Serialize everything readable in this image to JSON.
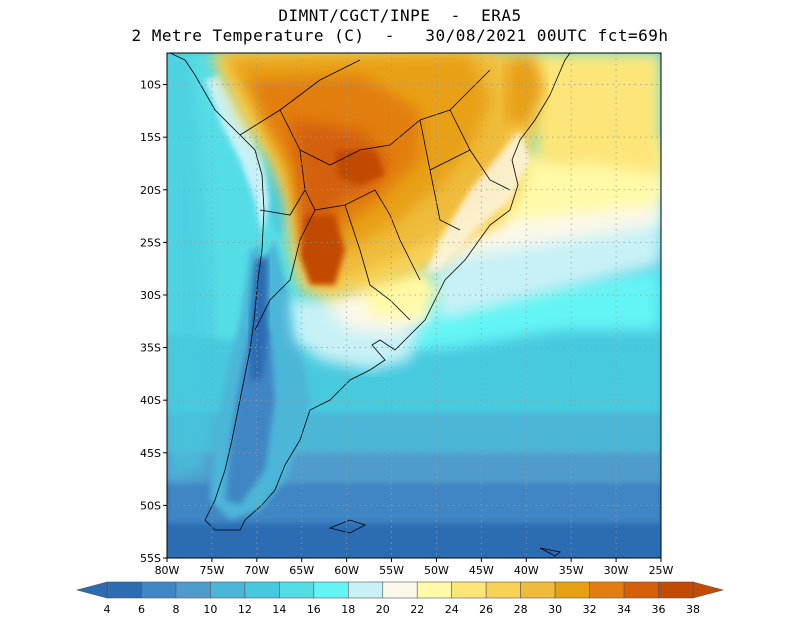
{
  "title": {
    "line1": "DIMNT/CGCT/INPE  -  ERA5",
    "line2": "2 Metre Temperature (C)  -   30/08/2021 00UTC fct=69h"
  },
  "map": {
    "lon_range": [
      -80,
      -25
    ],
    "lat_range": [
      -55,
      -7
    ],
    "lon_ticks": [
      -80,
      -75,
      -70,
      -65,
      -60,
      -55,
      -50,
      -45,
      -40,
      -35,
      -30,
      -25
    ],
    "lon_labels": [
      "80W",
      "75W",
      "70W",
      "65W",
      "60W",
      "55W",
      "50W",
      "45W",
      "40W",
      "35W",
      "30W",
      "25W"
    ],
    "lat_ticks": [
      -10,
      -15,
      -20,
      -25,
      -30,
      -35,
      -40,
      -45,
      -50,
      -55
    ],
    "lat_labels": [
      "10S",
      "15S",
      "20S",
      "25S",
      "30S",
      "35S",
      "40S",
      "45S",
      "50S",
      "55S"
    ],
    "grid": "dotted",
    "colorbar": {
      "labels": [
        "4",
        "6",
        "8",
        "10",
        "12",
        "14",
        "16",
        "18",
        "20",
        "22",
        "24",
        "26",
        "28",
        "30",
        "32",
        "34",
        "36",
        "38"
      ],
      "colors": [
        "#2b6cb3",
        "#3f86c4",
        "#4f9ccc",
        "#4bb6d8",
        "#46c9de",
        "#55dde6",
        "#63f4f5",
        "#c7f1f7",
        "#fcf8ea",
        "#fffaa8",
        "#fde679",
        "#f8d257",
        "#efbb3a",
        "#e8a013",
        "#e27e10",
        "#d4600a",
        "#c24a02"
      ]
    }
  }
}
